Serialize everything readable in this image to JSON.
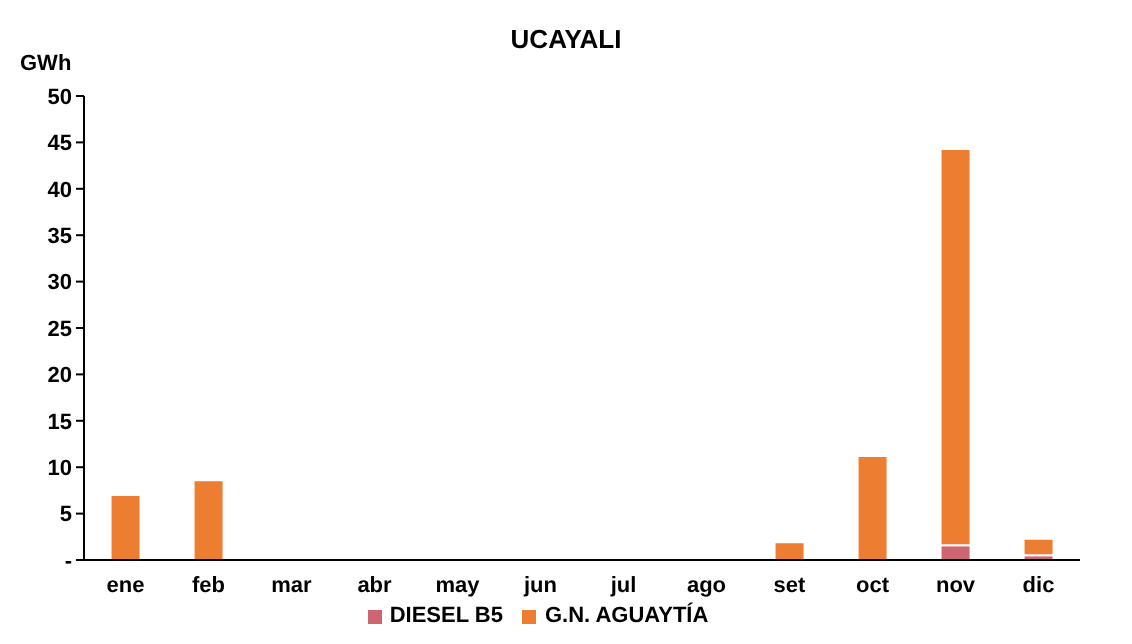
{
  "chart_data": {
    "type": "bar",
    "title": "UCAYALI",
    "ylabel": "GWh",
    "stacked": true,
    "categories": [
      "ene",
      "feb",
      "mar",
      "abr",
      "may",
      "jun",
      "jul",
      "ago",
      "set",
      "oct",
      "nov",
      "dic"
    ],
    "series": [
      {
        "name": "DIESEL B5",
        "color": "#cd6670",
        "values": [
          0,
          0,
          0,
          0,
          0,
          0,
          0,
          0,
          0,
          0,
          1.6,
          0.5
        ]
      },
      {
        "name": "G.N. AGUAYTÍA",
        "color": "#ed7d31",
        "values": [
          7.0,
          8.6,
          0,
          0,
          0,
          0,
          0,
          0,
          1.9,
          11.2,
          42.7,
          1.8
        ]
      }
    ],
    "ylim": [
      0,
      50
    ],
    "yticks": [
      {
        "value": 0,
        "label": "-"
      },
      5,
      10,
      15,
      20,
      25,
      30,
      35,
      40,
      45,
      50
    ],
    "grid": false,
    "legend": "bottom"
  }
}
